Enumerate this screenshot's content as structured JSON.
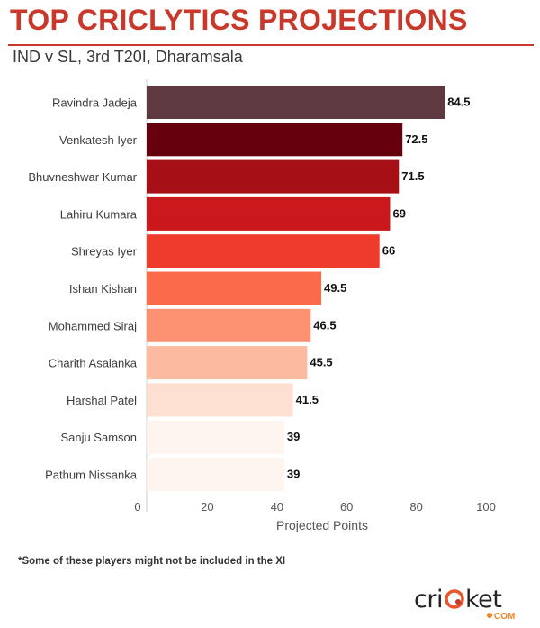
{
  "header": {
    "title": "TOP CRICLYTICS PROJECTIONS",
    "subtitle": "IND v SL, 3rd T20I, Dharamsala"
  },
  "chart_data": {
    "type": "bar",
    "orientation": "horizontal",
    "categories": [
      "Ravindra Jadeja",
      "Venkatesh Iyer",
      "Bhuvneshwar Kumar",
      "Lahiru Kumara",
      "Shreyas Iyer",
      "Ishan Kishan",
      "Mohammed Siraj",
      "Charith Asalanka",
      "Harshal Patel",
      "Sanju Samson",
      "Pathum Nissanka"
    ],
    "values": [
      84.5,
      72.5,
      71.5,
      69,
      66,
      49.5,
      46.5,
      45.5,
      41.5,
      39,
      39
    ],
    "value_labels": [
      "84.5",
      "72.5",
      "71.5",
      "69",
      "66",
      "49.5",
      "46.5",
      "45.5",
      "41.5",
      "39",
      "39"
    ],
    "colors": [
      "#5e3a40",
      "#67000d",
      "#a50f15",
      "#cb181d",
      "#ef3b2c",
      "#fb6a4a",
      "#fc9272",
      "#fcbba1",
      "#fee0d2",
      "#fff5f0",
      "#fff5f0"
    ],
    "xlabel": "Projected Points",
    "xlim": [
      0,
      100
    ],
    "xticks": [
      "0",
      "20",
      "40",
      "60",
      "80",
      "100"
    ],
    "grid": false
  },
  "footnote": "*Some of these players might not be included in the XI",
  "logo": {
    "text": "cricket",
    "suffix": ".COM"
  }
}
